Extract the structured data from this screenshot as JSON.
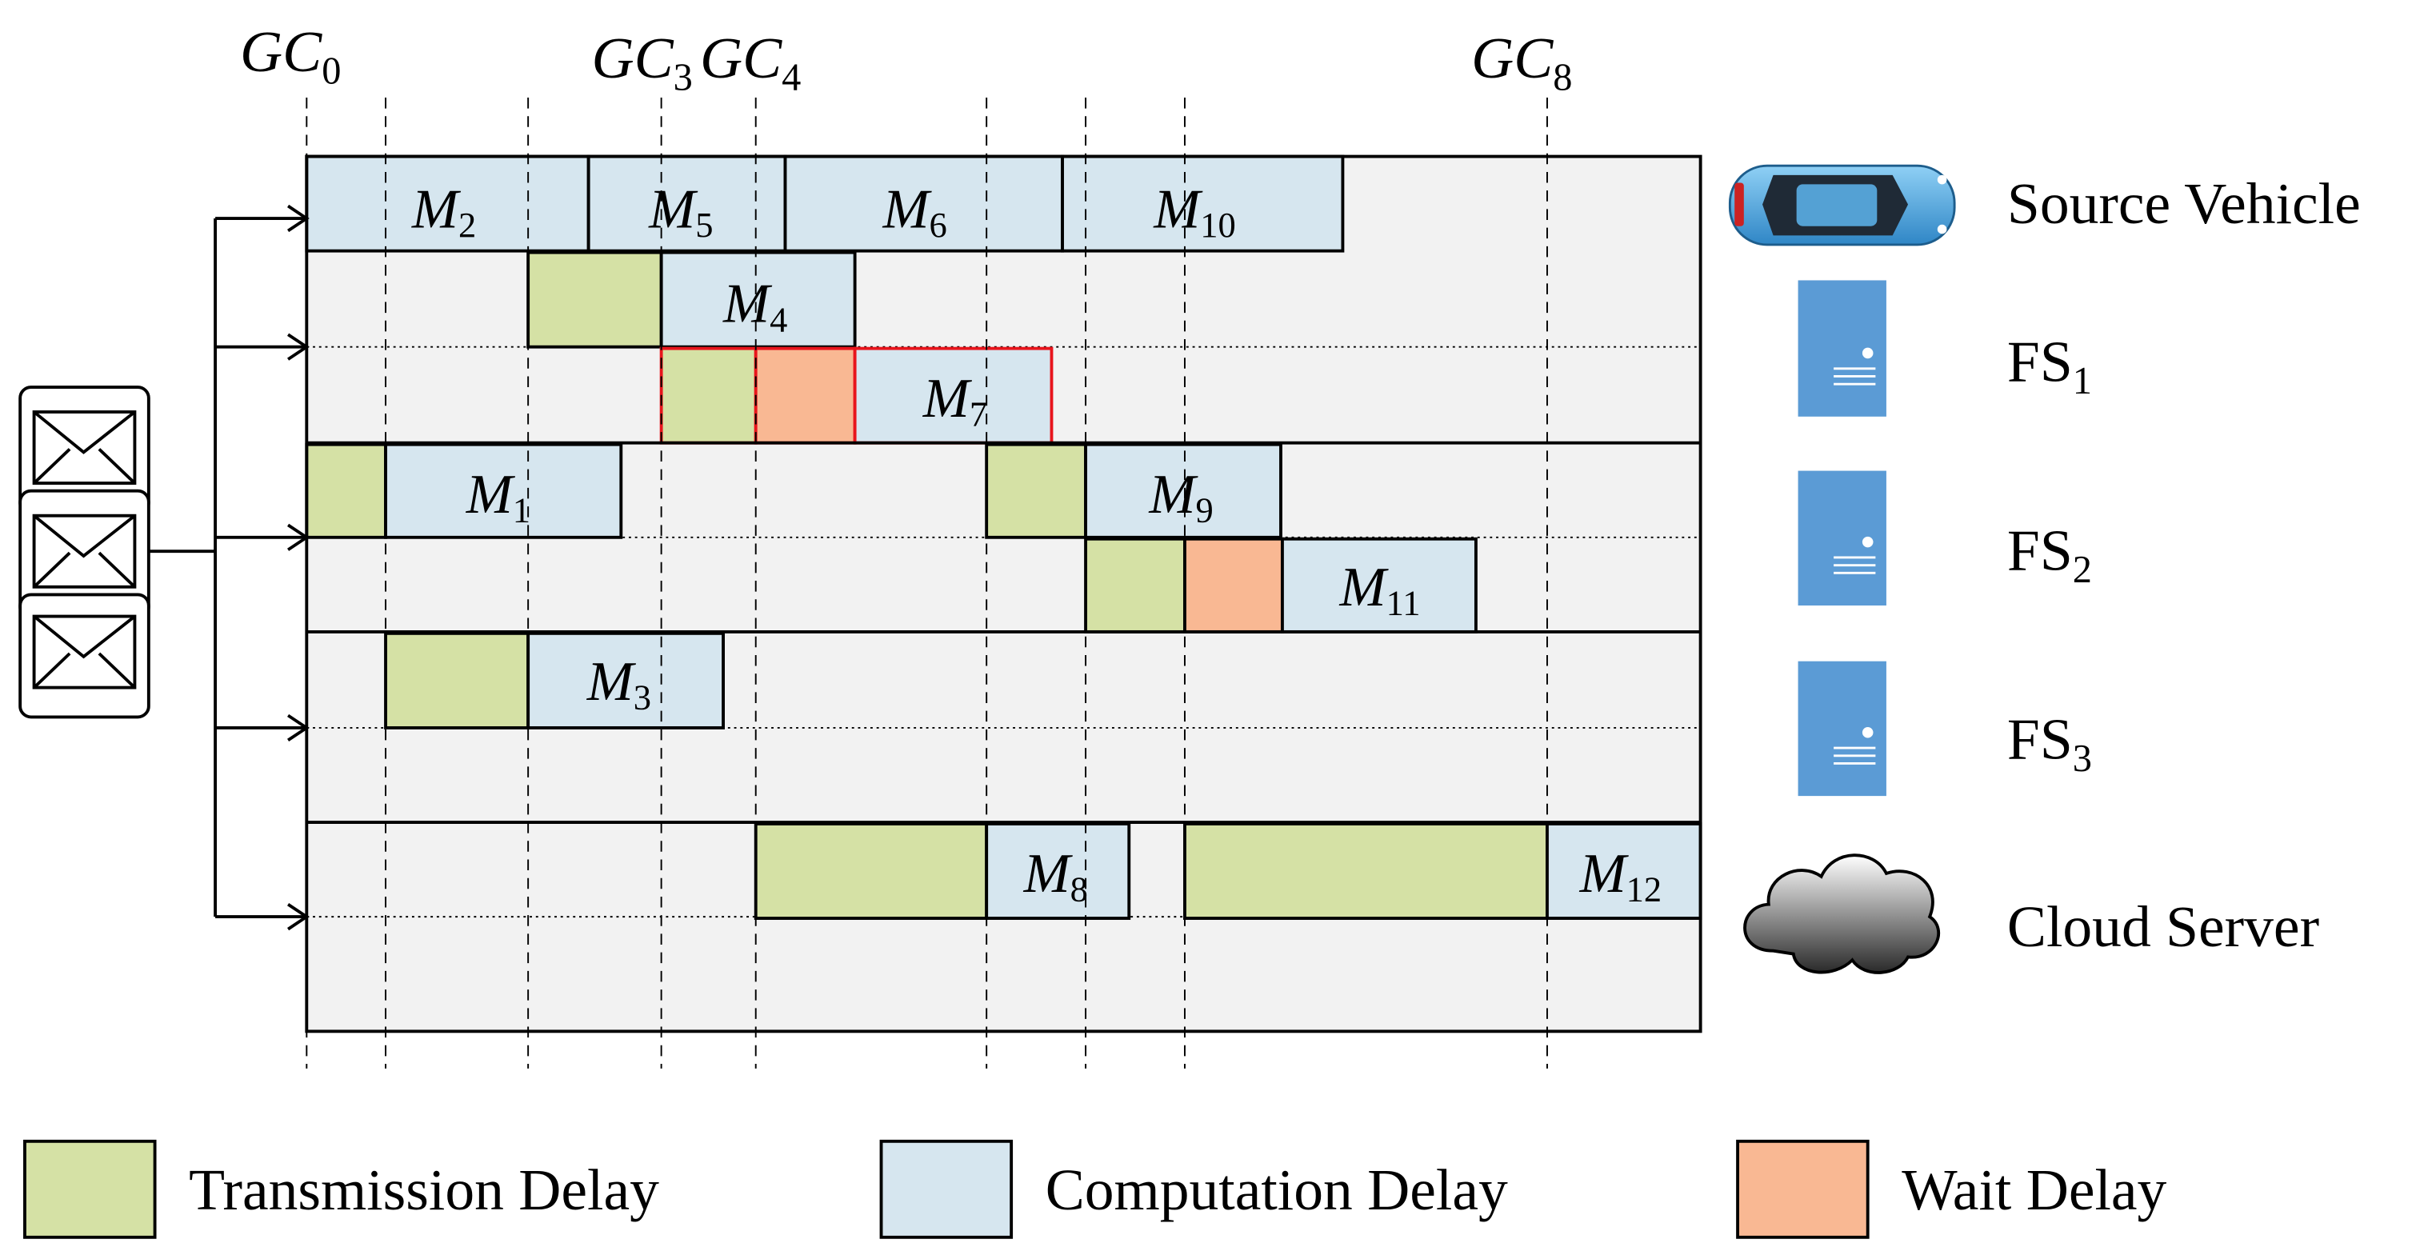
{
  "gc_labels": [
    {
      "base": "GC",
      "sub": "0"
    },
    {
      "base": "GC",
      "sub": "3"
    },
    {
      "base": "GC",
      "sub": "4"
    },
    {
      "base": "GC",
      "sub": "8"
    }
  ],
  "modules": {
    "m1": {
      "base": "M",
      "sub": "1"
    },
    "m2": {
      "base": "M",
      "sub": "2"
    },
    "m3": {
      "base": "M",
      "sub": "3"
    },
    "m4": {
      "base": "M",
      "sub": "4"
    },
    "m5": {
      "base": "M",
      "sub": "5"
    },
    "m6": {
      "base": "M",
      "sub": "6"
    },
    "m7": {
      "base": "M",
      "sub": "7"
    },
    "m8": {
      "base": "M",
      "sub": "8"
    },
    "m9": {
      "base": "M",
      "sub": "9"
    },
    "m10": {
      "base": "M",
      "sub": "10"
    },
    "m11": {
      "base": "M",
      "sub": "11"
    },
    "m12": {
      "base": "M",
      "sub": "12"
    }
  },
  "resources": {
    "source_vehicle": "Source Vehicle",
    "fs1": {
      "base": "FS",
      "sub": "1"
    },
    "fs2": {
      "base": "FS",
      "sub": "2"
    },
    "fs3": {
      "base": "FS",
      "sub": "3"
    },
    "cloud": "Cloud Server"
  },
  "legend": {
    "transmission": "Transmission Delay",
    "computation": "Computation Delay",
    "wait": "Wait Delay"
  },
  "icons": {
    "message_stack": "envelope-icon",
    "source_vehicle": "car-icon",
    "fog_server": "server-icon",
    "cloud_server": "cloud-icon"
  },
  "colors": {
    "transmission": "#d5e1a5",
    "computation": "#d6e6ef",
    "wait": "#f9b893",
    "background": "#f2f2f2",
    "highlight": "#e8151c",
    "server_blue": "#5b9bd5",
    "car_blue": "#5aaee6"
  }
}
